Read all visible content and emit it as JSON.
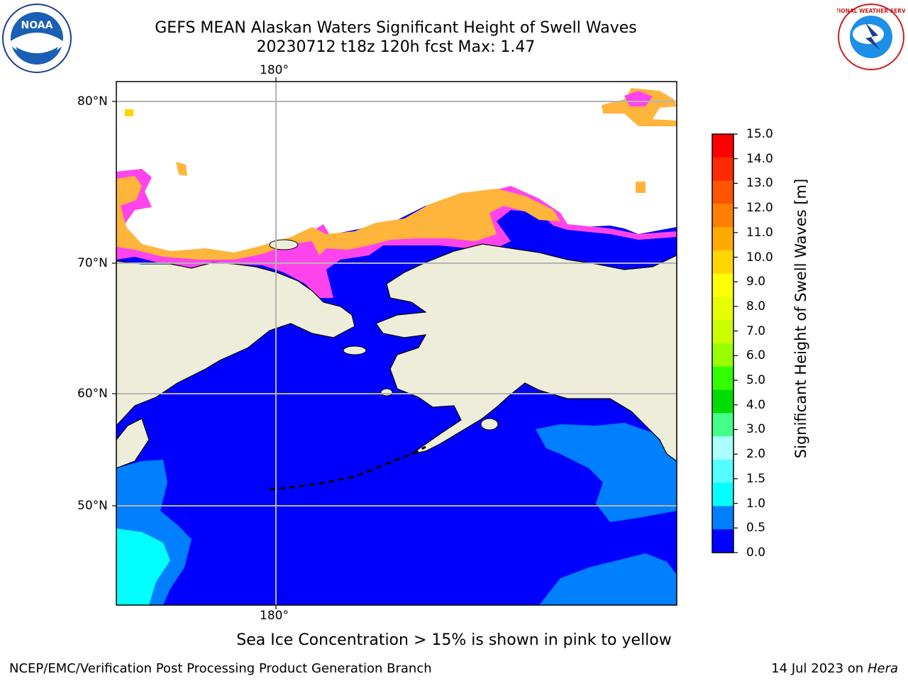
{
  "header": {
    "title_line1": "GEFS MEAN Alaskan Waters Significant Height of Swell Waves",
    "title_line2": "20230712 t18z 120h fcst   Max: 1.47"
  },
  "logos": {
    "noaa_text": "NOAA",
    "nws_text": "NATIONAL WEATHER SERVICE"
  },
  "map": {
    "lon_label_top": "180°",
    "lon_label_bottom": "180°",
    "lat_labels": [
      "80°N",
      "70°N",
      "60°N",
      "50°N"
    ],
    "colors": {
      "land": "#eeedda",
      "ocean_low": "#0000ff",
      "ocean_mid": "#0080ff",
      "ocean_high": "#00ffff",
      "ice_edge": "#ff44ee",
      "ice_core": "#ffb43c",
      "grid": "#b4b4b4"
    }
  },
  "colorbar": {
    "label": "Significant Height of Swell Waves [m]",
    "ticks": [
      "15.0",
      "14.0",
      "13.0",
      "12.0",
      "11.0",
      "10.0",
      "9.0",
      "8.0",
      "7.0",
      "6.0",
      "5.0",
      "4.0",
      "3.0",
      "2.0",
      "1.5",
      "1.0",
      "0.5",
      "0.0"
    ],
    "colors": [
      "#ff0000",
      "#ff2a00",
      "#ff5500",
      "#ff8000",
      "#ffaa00",
      "#ffd500",
      "#ffff00",
      "#e6ff00",
      "#ccff00",
      "#99ff00",
      "#33ff00",
      "#00dd00",
      "#44ff88",
      "#aaffff",
      "#55ffff",
      "#00ffff",
      "#0080ff",
      "#0000ff"
    ]
  },
  "note": "Sea Ice Concentration > 15% is shown in pink to yellow",
  "footer": {
    "left": "NCEP/EMC/Verification Post Processing Product Generation Branch",
    "right_date": "14 Jul 2023 on ",
    "right_host": "Hera"
  }
}
